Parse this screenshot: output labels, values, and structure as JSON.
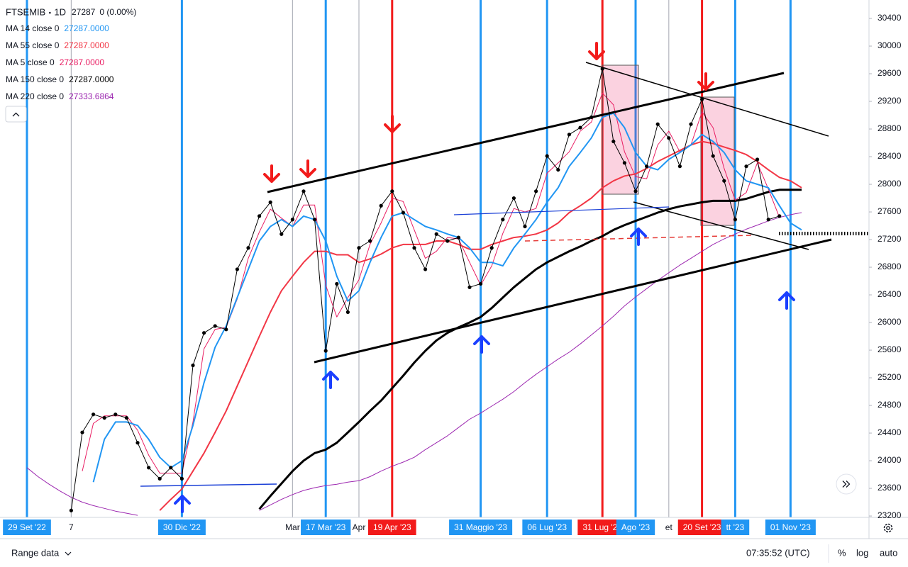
{
  "chart_data": {
    "type": "line",
    "interval": "1D",
    "last": 27287,
    "change": "0 (0.00%)",
    "time": "07:35:52 (UTC)",
    "range_label": "Range data",
    "scale_buttons": [
      "%",
      "log",
      "auto"
    ],
    "categories": [
      "29 Set '22",
      null,
      null,
      null,
      "7",
      null,
      null,
      null,
      null,
      null,
      null,
      null,
      null,
      null,
      "30 Dic '22",
      null,
      null,
      null,
      null,
      null,
      null,
      null,
      null,
      null,
      "Mar",
      null,
      null,
      "17 Mar '23",
      null,
      null,
      "Apr",
      null,
      null,
      "19 Apr '23",
      null,
      null,
      null,
      null,
      null,
      null,
      null,
      "31 Maggio '23",
      null,
      null,
      null,
      null,
      null,
      "06 Lug '23",
      null,
      null,
      null,
      null,
      "31 Lug '23",
      null,
      null,
      "Ago '23",
      null,
      null,
      "et",
      null,
      null,
      "20 Set '23",
      null,
      null,
      "tt '23",
      null,
      null,
      null,
      null,
      "01 Nov '23",
      null
    ],
    "marker_colors": [
      "#2196f3",
      null,
      null,
      null,
      null,
      null,
      null,
      null,
      null,
      null,
      null,
      null,
      null,
      null,
      "#2196f3",
      null,
      null,
      null,
      null,
      null,
      null,
      null,
      null,
      null,
      null,
      null,
      null,
      "#2196f3",
      null,
      null,
      null,
      null,
      null,
      "#f21b1b",
      null,
      null,
      null,
      null,
      null,
      null,
      null,
      "#2196f3",
      null,
      null,
      null,
      null,
      null,
      "#2196f3",
      null,
      null,
      null,
      null,
      "#f21b1b",
      null,
      null,
      "#2196f3",
      null,
      null,
      null,
      null,
      null,
      "#f21b1b",
      null,
      null,
      "#2196f3",
      null,
      null,
      null,
      null,
      "#2196f3",
      null
    ],
    "series": [
      {
        "name": "FTSEMIB",
        "color": "#000000",
        "line_width": 1,
        "markers": true,
        "values": [
          null,
          null,
          null,
          null,
          23280,
          24410,
          24670,
          24620,
          24670,
          24620,
          24260,
          23900,
          23740,
          23900,
          23740,
          25380,
          25850,
          25950,
          25900,
          26770,
          27080,
          27540,
          27740,
          27280,
          27490,
          27900,
          27490,
          25590,
          26560,
          26150,
          27080,
          27180,
          27690,
          27900,
          27590,
          27080,
          26770,
          27280,
          27180,
          27230,
          26510,
          26560,
          27080,
          27490,
          27800,
          27390,
          27900,
          28410,
          28210,
          28720,
          28820,
          28970,
          29670,
          28620,
          28310,
          27900,
          28260,
          28870,
          28670,
          28260,
          28870,
          29230,
          28410,
          28050,
          27490,
          28260,
          28360,
          27490,
          27540,
          null,
          null
        ]
      },
      {
        "name": "MA 14 close 0",
        "legend_value": "27287.0000",
        "color": "#2196f3",
        "line_width": 2,
        "values": [
          null,
          null,
          null,
          null,
          null,
          null,
          23690,
          24310,
          24560,
          24560,
          24510,
          24310,
          24050,
          23900,
          24000,
          24510,
          25130,
          25640,
          25950,
          26360,
          26770,
          27180,
          27390,
          27490,
          27390,
          27540,
          27490,
          27180,
          26670,
          26310,
          26460,
          26870,
          27230,
          27540,
          27590,
          27490,
          27390,
          27340,
          27280,
          27230,
          27080,
          26870,
          26870,
          26820,
          27080,
          27280,
          27490,
          27740,
          27950,
          28260,
          28460,
          28670,
          28970,
          29030,
          28820,
          28460,
          28260,
          28210,
          28360,
          28460,
          28570,
          28720,
          28620,
          28460,
          28210,
          28050,
          28000,
          27950,
          27690,
          27440,
          27340
        ]
      },
      {
        "name": "MA 55 close 0",
        "legend_value": "27287.0000",
        "color": "#f23645",
        "line_width": 2,
        "values": [
          null,
          null,
          null,
          null,
          null,
          null,
          null,
          null,
          null,
          null,
          null,
          null,
          23280,
          23440,
          23590,
          23850,
          24110,
          24410,
          24720,
          25080,
          25440,
          25800,
          26150,
          26460,
          26670,
          26870,
          27030,
          27030,
          26980,
          26980,
          26870,
          26920,
          26990,
          27080,
          27130,
          27130,
          27130,
          27180,
          27180,
          27130,
          27060,
          27060,
          27130,
          27180,
          27230,
          27250,
          27280,
          27340,
          27440,
          27590,
          27690,
          27800,
          27950,
          28050,
          28120,
          28150,
          28230,
          28330,
          28410,
          28490,
          28570,
          28620,
          28590,
          28540,
          28490,
          28430,
          28330,
          28210,
          28100,
          28050,
          27950
        ]
      },
      {
        "name": "MA 5 close 0",
        "legend_value": "27287.0000",
        "color": "#e91e63",
        "line_width": 1,
        "values": [
          null,
          null,
          null,
          null,
          null,
          23850,
          24540,
          24650,
          24650,
          24650,
          24440,
          24080,
          23820,
          23820,
          23820,
          24560,
          25620,
          25900,
          25930,
          26340,
          26930,
          27310,
          27640,
          27510,
          27390,
          27700,
          27700,
          26540,
          26080,
          26360,
          26620,
          27130,
          27440,
          27800,
          27750,
          27340,
          26930,
          27030,
          27230,
          27210,
          26870,
          26540,
          26820,
          27290,
          27650,
          27600,
          27650,
          28160,
          28310,
          28470,
          28770,
          28900,
          29320,
          29150,
          28470,
          28110,
          28080,
          28570,
          28770,
          28470,
          28570,
          29050,
          28820,
          28230,
          27770,
          27880,
          28310,
          27930,
          27520,
          null,
          null
        ]
      },
      {
        "name": "MA 150 close 0",
        "legend_value": "27287.0000",
        "color": "#000000",
        "line_width": 3,
        "values": [
          null,
          null,
          null,
          null,
          null,
          null,
          null,
          null,
          null,
          null,
          null,
          null,
          null,
          null,
          null,
          null,
          null,
          null,
          null,
          null,
          null,
          23300,
          23490,
          23670,
          23850,
          24000,
          24110,
          24160,
          24260,
          24410,
          24560,
          24720,
          24870,
          25050,
          25230,
          25420,
          25590,
          25740,
          25850,
          25930,
          26000,
          26080,
          26210,
          26360,
          26510,
          26640,
          26770,
          26870,
          26950,
          27030,
          27100,
          27180,
          27250,
          27340,
          27410,
          27470,
          27530,
          27590,
          27640,
          27680,
          27710,
          27740,
          27760,
          27760,
          27760,
          27790,
          27840,
          27890,
          27920,
          27920,
          27920
        ]
      },
      {
        "name": "MA 220 close 0",
        "legend_value": "27333.6864",
        "color": "#9c27b0",
        "line_width": 1,
        "values": [
          23900,
          23770,
          23660,
          23560,
          23470,
          23400,
          23350,
          23310,
          23270,
          23240,
          23210,
          null,
          null,
          null,
          null,
          null,
          null,
          null,
          null,
          null,
          null,
          23280,
          23360,
          23440,
          23510,
          23570,
          23610,
          23640,
          23660,
          23690,
          23710,
          23770,
          23850,
          23920,
          23980,
          24050,
          24160,
          24260,
          24360,
          24480,
          24600,
          24690,
          24790,
          24890,
          25000,
          25130,
          25250,
          25360,
          25470,
          25570,
          25690,
          25820,
          25950,
          26090,
          26240,
          26370,
          26490,
          26610,
          26720,
          26830,
          26930,
          27030,
          27130,
          27210,
          27280,
          27350,
          27410,
          27470,
          27520,
          27560,
          27590
        ]
      }
    ],
    "ylim": [
      23180,
      30667
    ],
    "yticks": [
      23200,
      23600,
      24000,
      24400,
      24800,
      25200,
      25600,
      26000,
      26400,
      26800,
      27200,
      27600,
      28000,
      28400,
      28800,
      29200,
      29600,
      30000,
      30400
    ],
    "grid": false
  }
}
